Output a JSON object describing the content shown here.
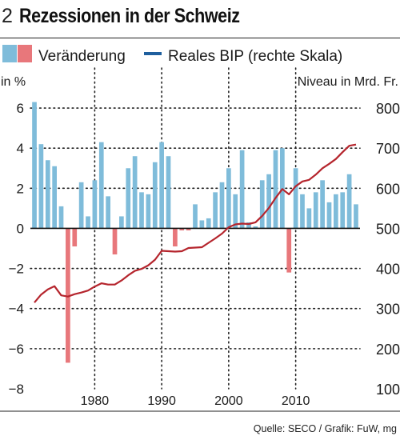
{
  "figure": {
    "number": "2",
    "title": "Rezessionen in der Schweiz",
    "source": "Quelle: SECO / Grafik: FuW, mg"
  },
  "colors": {
    "bar_positive": "#7fbcda",
    "bar_negative": "#e8777b",
    "line": "#b5252d",
    "legend_line": "#1f5f9e",
    "grid": "#222222"
  },
  "chart_data": {
    "type": "bar",
    "legend": [
      {
        "name": "Veränderung",
        "kind": "bar-pair"
      },
      {
        "name": "Reales BIP (rechte Skala)",
        "kind": "line"
      }
    ],
    "ylabel": "in %",
    "y2label": "Niveau in Mrd. Fr.",
    "ylim": [
      -8,
      7
    ],
    "y2lim": [
      100,
      850
    ],
    "yticks": [
      -8,
      -6,
      -4,
      -2,
      0,
      2,
      4,
      6
    ],
    "ytick_labels": [
      "−8",
      "−6",
      "−4",
      "−2",
      "0",
      "2",
      "4",
      "6"
    ],
    "y2ticks": [
      100,
      200,
      300,
      400,
      500,
      600,
      700,
      800
    ],
    "y2tick_labels": [
      "100",
      "200",
      "300",
      "400",
      "500",
      "600",
      "700",
      "800"
    ],
    "xticks": [
      1980,
      1990,
      2000,
      2010
    ],
    "xtick_labels": [
      "1980",
      "1990",
      "2000",
      "2010"
    ],
    "gridlines_x": [
      1980,
      1990,
      2000,
      2010
    ],
    "gridlines_y": [
      6,
      4,
      2,
      -2,
      -4,
      -6
    ],
    "x": [
      1971,
      1972,
      1973,
      1974,
      1975,
      1976,
      1977,
      1978,
      1979,
      1980,
      1981,
      1982,
      1983,
      1984,
      1985,
      1986,
      1987,
      1988,
      1989,
      1990,
      1991,
      1992,
      1993,
      1994,
      1995,
      1996,
      1997,
      1998,
      1999,
      2000,
      2001,
      2002,
      2003,
      2004,
      2005,
      2006,
      2007,
      2008,
      2009,
      2010,
      2011,
      2012,
      2013,
      2014,
      2015,
      2016,
      2017,
      2018,
      2019
    ],
    "series": [
      {
        "name": "Veränderung",
        "values": [
          6.3,
          4.2,
          3.4,
          3.1,
          1.1,
          -6.7,
          -0.9,
          2.3,
          0.6,
          2.4,
          4.3,
          1.6,
          -1.3,
          0.6,
          3.0,
          3.6,
          1.8,
          1.7,
          3.3,
          4.3,
          3.6,
          -0.9,
          -0.1,
          -0.1,
          1.2,
          0.4,
          0.5,
          1.8,
          2.3,
          3.0,
          1.7,
          3.9,
          0.3,
          0.1,
          2.4,
          2.7,
          3.9,
          4.0,
          -2.2,
          3.0,
          1.7,
          1.0,
          1.8,
          2.4,
          1.3,
          1.7,
          1.8,
          2.7,
          1.2
        ]
      },
      {
        "name": "Reales BIP (rechte Skala)",
        "values": [
          315,
          335,
          348,
          356,
          333,
          330,
          336,
          340,
          345,
          355,
          363,
          360,
          360,
          370,
          383,
          394,
          399,
          408,
          422,
          444,
          443,
          442,
          443,
          451,
          452,
          453,
          464,
          475,
          487,
          503,
          510,
          512,
          511,
          515,
          531,
          551,
          576,
          598,
          585,
          605,
          617,
          621,
          634,
          650,
          661,
          673,
          690,
          706,
          709
        ]
      }
    ]
  }
}
